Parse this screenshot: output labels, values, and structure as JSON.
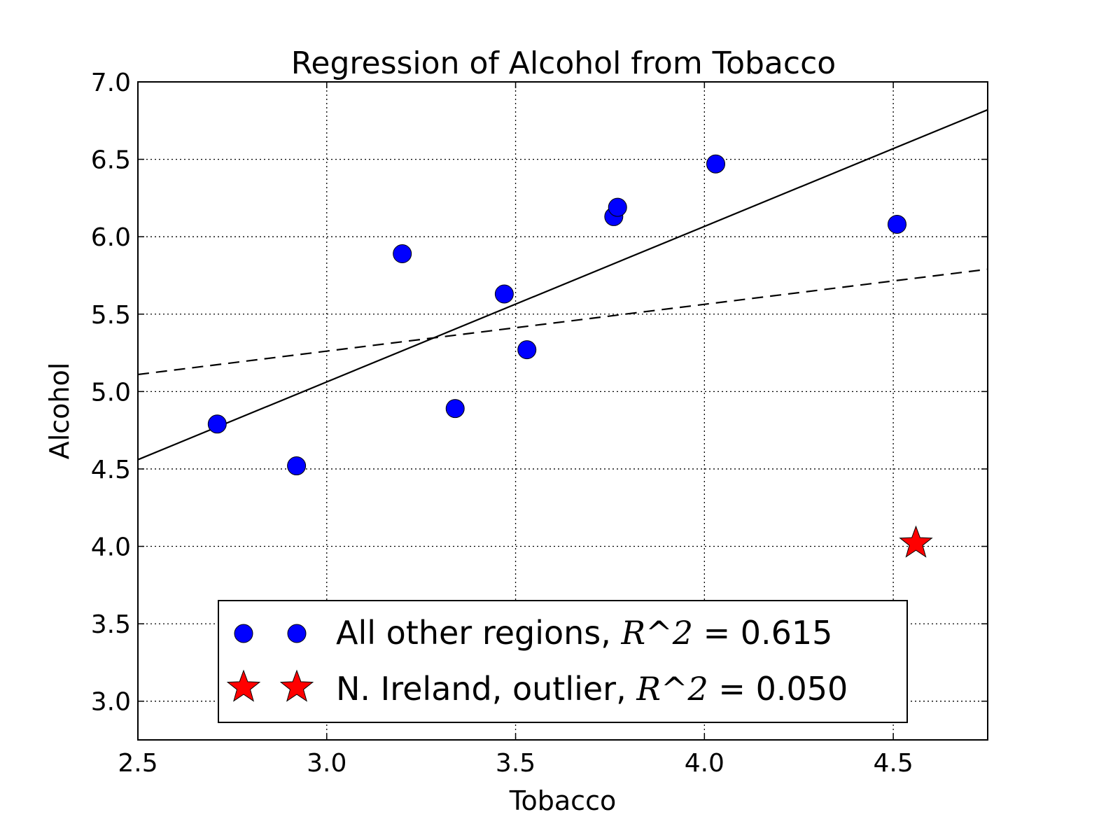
{
  "chart_data": {
    "type": "scatter",
    "title": "Regression of Alcohol from Tobacco",
    "xlabel": "Tobacco",
    "ylabel": "Alcohol",
    "xlim": [
      2.5,
      4.75
    ],
    "ylim": [
      2.75,
      7.0
    ],
    "xticks": [
      2.5,
      3.0,
      3.5,
      4.0,
      4.5
    ],
    "xtick_labels": [
      "2.5",
      "3.0",
      "3.5",
      "4.0",
      "4.5"
    ],
    "yticks": [
      3.0,
      3.5,
      4.0,
      4.5,
      5.0,
      5.5,
      6.0,
      6.5,
      7.0
    ],
    "ytick_labels": [
      "3.0",
      "3.5",
      "4.0",
      "4.5",
      "5.0",
      "5.5",
      "6.0",
      "6.5",
      "7.0"
    ],
    "grid": true,
    "legend_position": "bottom-center",
    "series": [
      {
        "name": "All other regions, R^2 = 0.615",
        "label_text": "All other regions, ",
        "label_math": "R^2",
        "label_value": " = 0.615",
        "marker": "circle",
        "color": "#0000ff",
        "points": [
          {
            "x": 2.71,
            "y": 4.79
          },
          {
            "x": 2.92,
            "y": 4.52
          },
          {
            "x": 3.2,
            "y": 5.89
          },
          {
            "x": 3.34,
            "y": 4.89
          },
          {
            "x": 3.47,
            "y": 5.63
          },
          {
            "x": 3.53,
            "y": 5.27
          },
          {
            "x": 3.76,
            "y": 6.13
          },
          {
            "x": 3.77,
            "y": 6.19
          },
          {
            "x": 4.03,
            "y": 6.47
          },
          {
            "x": 4.51,
            "y": 6.08
          }
        ]
      },
      {
        "name": "N. Ireland, outlier, R^2 = 0.050",
        "label_text": "N. Ireland, outlier, ",
        "label_math": "R^2",
        "label_value": " = 0.050",
        "marker": "star",
        "color": "#ff0000",
        "points": [
          {
            "x": 4.56,
            "y": 4.02
          }
        ]
      }
    ],
    "fit_lines": [
      {
        "style": "solid",
        "color": "#000000",
        "x": [
          2.5,
          4.75
        ],
        "y": [
          4.56,
          6.82
        ]
      },
      {
        "style": "dashed",
        "color": "#000000",
        "x": [
          2.5,
          4.75
        ],
        "y": [
          5.11,
          5.79
        ]
      }
    ]
  }
}
